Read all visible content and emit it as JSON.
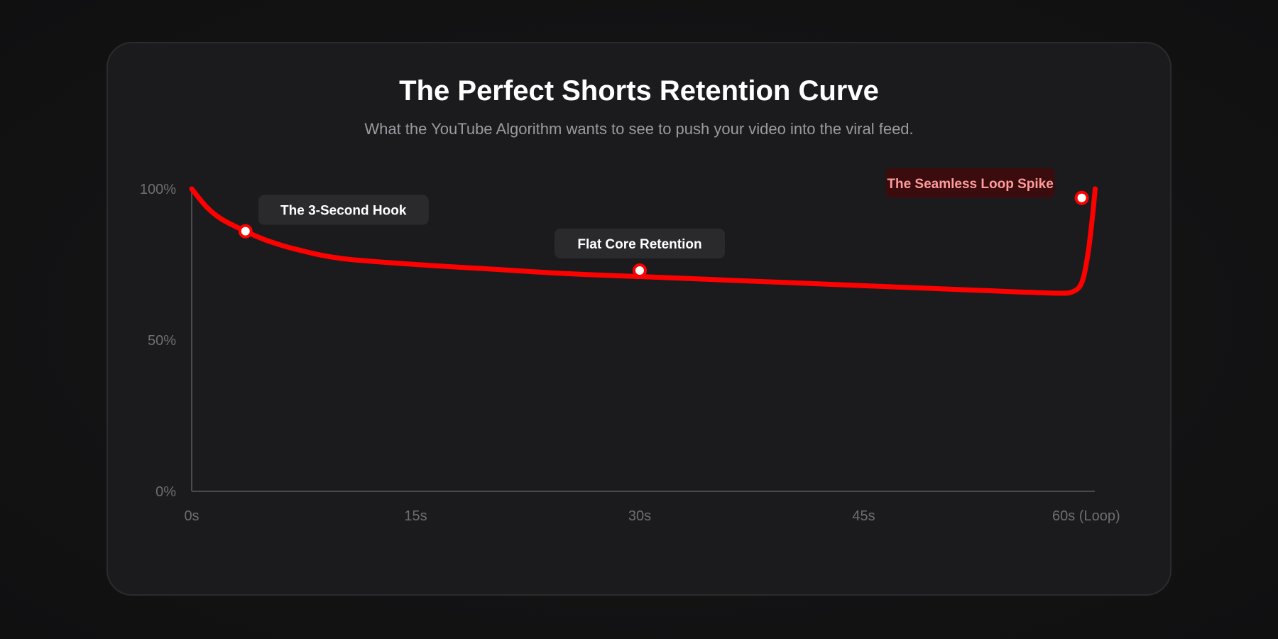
{
  "header": {
    "title": "The Perfect Shorts Retention Curve",
    "subtitle": "What the YouTube Algorithm wants to see to push your video into the viral feed."
  },
  "colors": {
    "line": "#ff0000",
    "accent_label_bg": "#3a0c0e",
    "accent_label_text": "#ff9b9b",
    "label_bg": "#2a2a2d",
    "label_text": "#ffffff",
    "axis": "#4a4a4e"
  },
  "chart_data": {
    "type": "line",
    "title": "The Perfect Shorts Retention Curve",
    "subtitle": "What the YouTube Algorithm wants to see to push your video into the viral feed.",
    "xlabel": "",
    "ylabel": "",
    "x_ticks": [
      {
        "value": 0,
        "label": "0s"
      },
      {
        "value": 15,
        "label": "15s"
      },
      {
        "value": 30,
        "label": "30s"
      },
      {
        "value": 45,
        "label": "45s"
      },
      {
        "value": 60,
        "label": "60s (Loop)"
      }
    ],
    "y_ticks": [
      {
        "value": 0,
        "label": "0%"
      },
      {
        "value": 50,
        "label": "50%"
      },
      {
        "value": 100,
        "label": "100%"
      }
    ],
    "xlim": [
      0,
      60
    ],
    "ylim": [
      0,
      100
    ],
    "grid": false,
    "series": [
      {
        "values": [
          [
            0,
            100
          ],
          [
            1,
            94
          ],
          [
            2,
            90
          ],
          [
            3.6,
            86
          ],
          [
            5,
            83
          ],
          [
            7,
            80
          ],
          [
            10,
            77
          ],
          [
            15,
            75
          ],
          [
            20,
            73.5
          ],
          [
            25,
            72
          ],
          [
            30,
            71
          ],
          [
            35,
            70
          ],
          [
            40,
            69
          ],
          [
            45,
            68
          ],
          [
            50,
            67
          ],
          [
            55,
            66
          ],
          [
            58,
            65.5
          ],
          [
            59,
            66
          ],
          [
            59.6,
            69
          ],
          [
            60,
            78
          ],
          [
            60.3,
            90
          ],
          [
            60.5,
            100
          ]
        ]
      }
    ],
    "annotations": [
      {
        "label": "The 3-Second Hook",
        "x": 3.6,
        "y": 86,
        "style": "neutral"
      },
      {
        "label": "Flat Core Retention",
        "x": 30,
        "y": 73,
        "style": "neutral"
      },
      {
        "label": "The Seamless Loop Spike",
        "x": 59.6,
        "y": 97,
        "style": "accent"
      }
    ]
  }
}
